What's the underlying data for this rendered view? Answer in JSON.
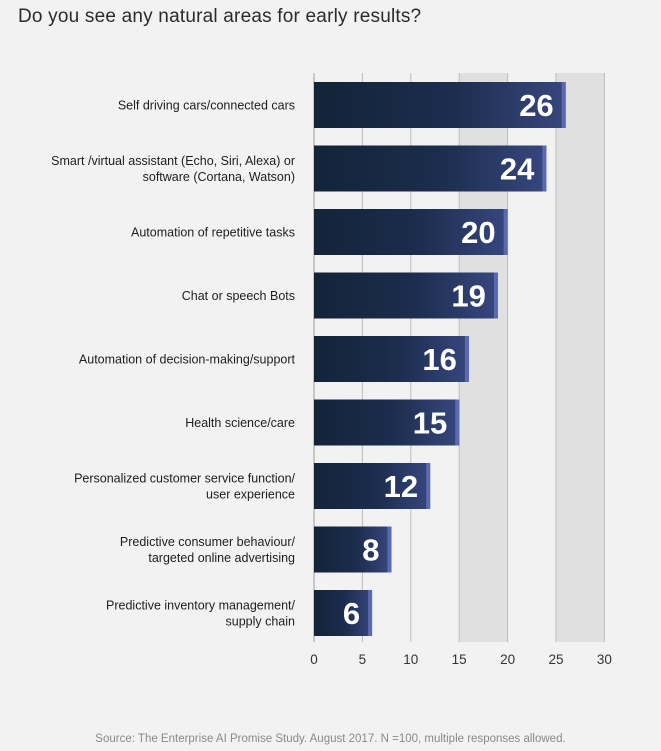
{
  "title": "Do you see any natural areas for early results?",
  "source": "Source: The Enterprise AI Promise Study. August 2017. N =100, multiple responses allowed.",
  "colors": {
    "bar_dark": "#132338",
    "bar_light": "#37477f",
    "bar_edge": "#5a6ab0",
    "band": "#e0e0e0",
    "gridline": "#bdbdbd",
    "background": "#f2f2f2"
  },
  "chart_data": {
    "type": "bar",
    "orientation": "horizontal",
    "categories": [
      "Self driving cars/connected cars",
      "Smart /virtual assistant  (Echo, Siri, Alexa) or software (Cortana, Watson)",
      "Automation of repetitive tasks",
      "Chat or speech Bots",
      "Automation of decision-making/support",
      "Health science/care",
      "Personalized customer service function/ user experience",
      "Predictive consumer behaviour/ targeted online advertising",
      "Predictive inventory management/ supply chain"
    ],
    "category_lines": [
      [
        "Self driving cars/connected cars"
      ],
      [
        "Smart /virtual assistant  (Echo, Siri, Alexa) or",
        "software (Cortana, Watson)"
      ],
      [
        "Automation of repetitive tasks"
      ],
      [
        "Chat or speech Bots"
      ],
      [
        "Automation of decision-making/support"
      ],
      [
        "Health science/care"
      ],
      [
        "Personalized customer service function/",
        "user experience"
      ],
      [
        "Predictive consumer behaviour/",
        "targeted online advertising"
      ],
      [
        "Predictive inventory management/",
        "supply chain"
      ]
    ],
    "values": [
      26,
      24,
      20,
      19,
      16,
      15,
      12,
      8,
      6
    ],
    "xlim": [
      0,
      30
    ],
    "xticks": [
      0,
      5,
      10,
      15,
      20,
      25,
      30
    ],
    "shaded_bands": [
      [
        15,
        20
      ],
      [
        25,
        30
      ]
    ],
    "grid": true,
    "legend": "none"
  }
}
